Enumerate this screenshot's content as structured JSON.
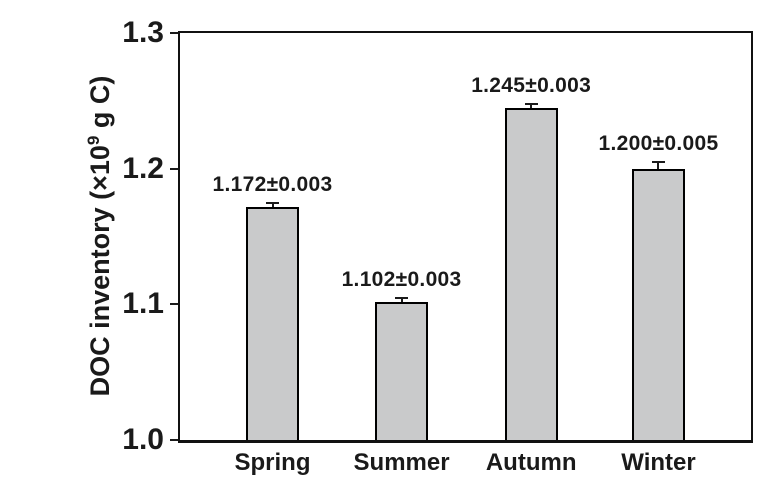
{
  "chart_data": {
    "type": "bar",
    "title": "",
    "categories": [
      "Spring",
      "Summer",
      "Autumn",
      "Winter"
    ],
    "series": [
      {
        "name": "DOC inventory",
        "values": [
          1.172,
          1.102,
          1.245,
          1.2
        ],
        "errors": [
          0.003,
          0.003,
          0.003,
          0.005
        ]
      }
    ],
    "bar_labels": [
      "1.172±0.003",
      "1.102±0.003",
      "1.245±0.003",
      "1.200±0.005"
    ],
    "xlabel": "",
    "ylabel": "DOC inventory (×10⁹ g C)",
    "ylabel_prefix": "DOC inventory (×10",
    "ylabel_sup": "9",
    "ylabel_suffix": " g C)",
    "yticks": [
      "1.3",
      "1.2",
      "1.1",
      "1.0"
    ],
    "ytick_values": [
      1.3,
      1.2,
      1.1,
      1.0
    ],
    "ylim": [
      1.0,
      1.3
    ],
    "grid": false,
    "legend": "none",
    "error_bars": "upper",
    "colors": {
      "bar_fill": "#c9cacb",
      "bar_border": "#000000",
      "axis": "#1a1a1a",
      "text": "#1a1a1a",
      "background": "#ffffff"
    }
  }
}
